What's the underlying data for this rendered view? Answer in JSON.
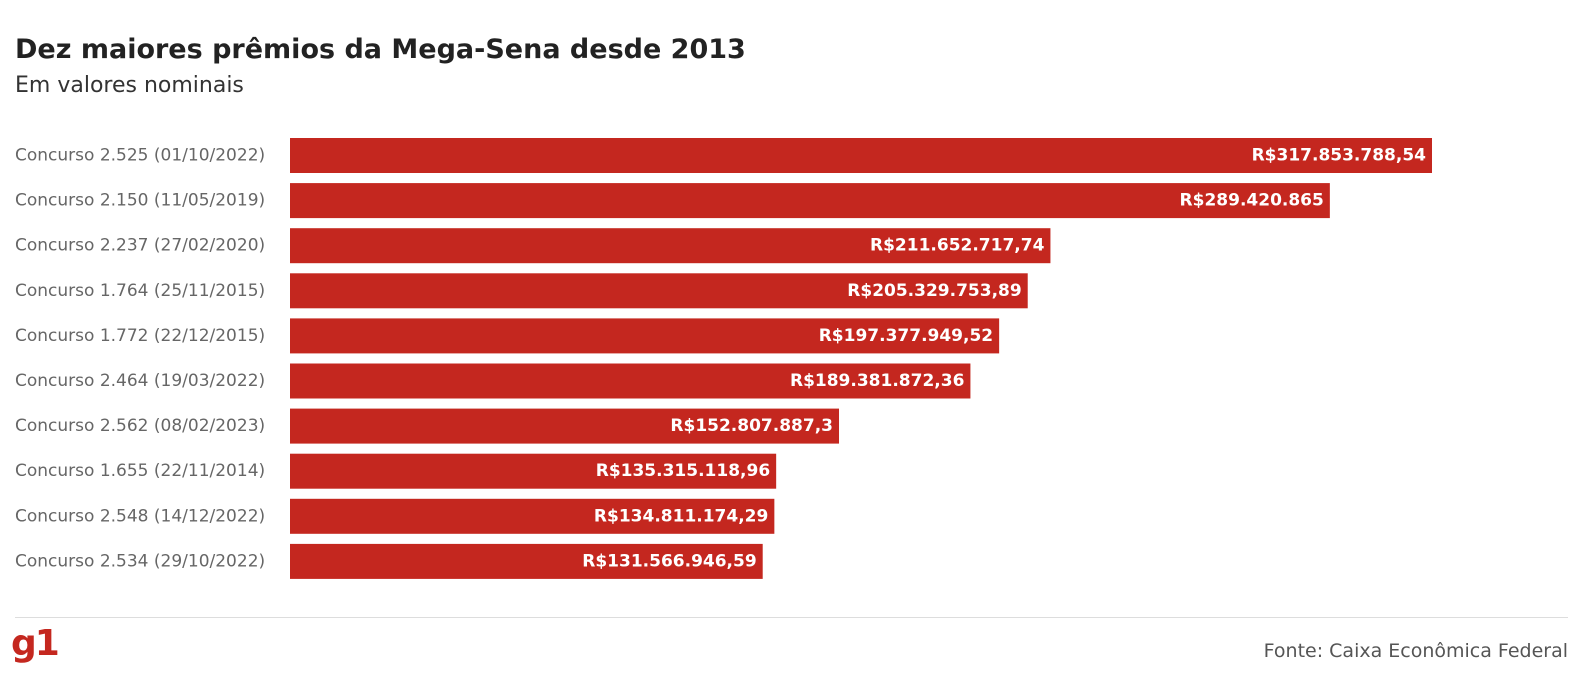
{
  "brand_logo": "g1",
  "source": "Fonte: Caixa Econômica Federal",
  "colors": {
    "bar": "#c4271f",
    "logo": "#c4271f",
    "bar_label": "#ffffff",
    "category_label": "#666666"
  },
  "chart_data": {
    "type": "bar",
    "orientation": "horizontal",
    "title": "Dez maiores prêmios da Mega-Sena desde 2013",
    "subtitle": "Em valores nominais",
    "categories": [
      "Concurso 2.525 (01/10/2022)",
      "Concurso 2.150 (11/05/2019)",
      "Concurso 2.237 (27/02/2020)",
      "Concurso 1.764 (25/11/2015)",
      "Concurso 1.772 (22/12/2015)",
      "Concurso 2.464 (19/03/2022)",
      "Concurso 2.562 (08/02/2023)",
      "Concurso 1.655 (22/11/2014)",
      "Concurso 2.548 (14/12/2022)",
      "Concurso 2.534 (29/10/2022)"
    ],
    "values": [
      317853788.54,
      289420865,
      211652717.74,
      205329753.89,
      197377949.52,
      189381872.36,
      152807887.3,
      135315118.96,
      134811174.29,
      131566946.59
    ],
    "labels": [
      "R$317.853.788,54",
      "R$289.420.865",
      "R$211.652.717,74",
      "R$205.329.753,89",
      "R$197.377.949,52",
      "R$189.381.872,36",
      "R$152.807.887,3",
      "R$135.315.118,96",
      "R$134.811.174,29",
      "R$131.566.946,59"
    ],
    "xlim": [
      0,
      317853788.54
    ],
    "grid": false,
    "legend": "none"
  }
}
